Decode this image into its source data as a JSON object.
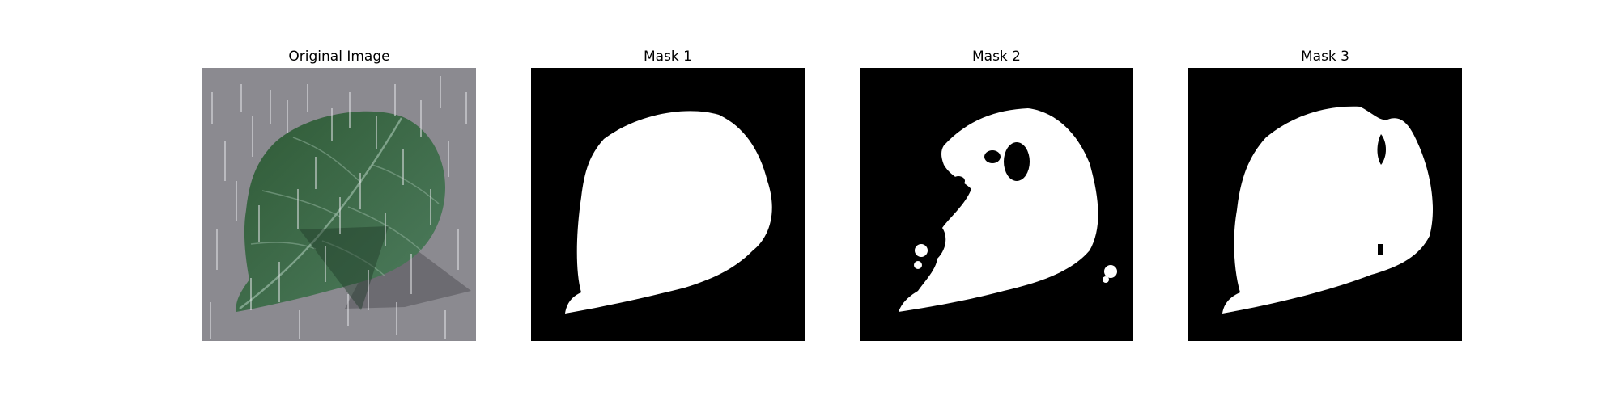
{
  "figure": {
    "panels": [
      {
        "title": "Original Image",
        "kind": "photo"
      },
      {
        "title": "Mask 1",
        "kind": "mask"
      },
      {
        "title": "Mask 2",
        "kind": "mask"
      },
      {
        "title": "Mask 3",
        "kind": "mask"
      }
    ]
  },
  "colors": {
    "mask_background": "#000000",
    "mask_foreground": "#ffffff",
    "surface": "#8b8a90",
    "leaf_dark": "#2f5a36",
    "leaf_light": "#4e7d5e",
    "leaf_vein": "#8fb09a",
    "rain_streak": "#e6e6ea"
  }
}
